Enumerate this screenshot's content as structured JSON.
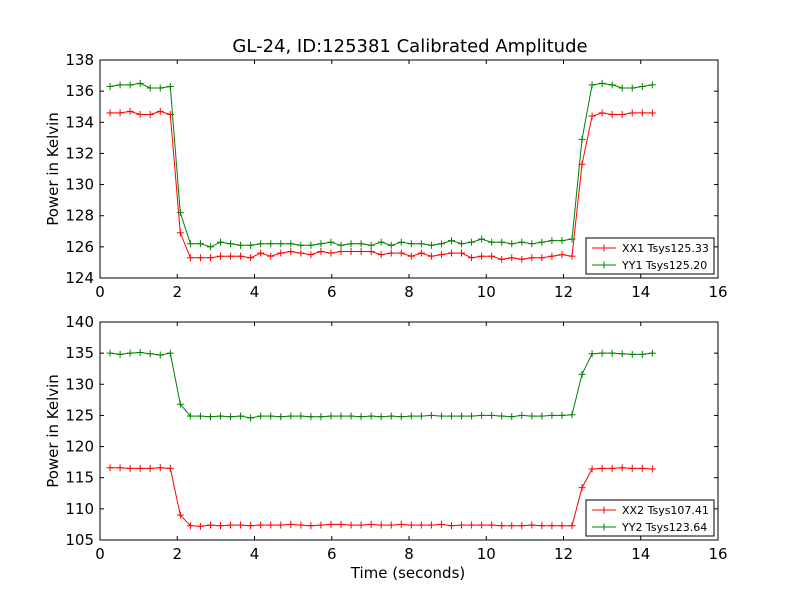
{
  "chart_data": [
    {
      "type": "line",
      "title": "GL-24, ID:125381 Calibrated Amplitude",
      "xlabel": "",
      "ylabel": "Power in Kelvin",
      "xlim": [
        0,
        16
      ],
      "ylim": [
        124,
        138
      ],
      "xticks": [
        "0",
        "2",
        "4",
        "6",
        "8",
        "10",
        "12",
        "14",
        "16"
      ],
      "yticks": [
        "124",
        "126",
        "128",
        "130",
        "132",
        "134",
        "136",
        "138"
      ],
      "grid": false,
      "legend": "lower right",
      "series": [
        {
          "name": "XX1 Tsys125.33",
          "color": "#ff0000",
          "x": [
            0.26,
            0.52,
            0.78,
            1.04,
            1.3,
            1.56,
            1.82,
            2.08,
            2.34,
            2.6,
            2.86,
            3.12,
            3.38,
            3.64,
            3.9,
            4.16,
            4.42,
            4.68,
            4.94,
            5.2,
            5.46,
            5.72,
            5.98,
            6.24,
            6.5,
            6.76,
            7.02,
            7.28,
            7.54,
            7.8,
            8.06,
            8.32,
            8.58,
            8.84,
            9.1,
            9.36,
            9.62,
            9.88,
            10.14,
            10.4,
            10.66,
            10.92,
            11.18,
            11.44,
            11.7,
            11.96,
            12.22,
            12.48,
            12.74,
            13.0,
            13.26,
            13.52,
            13.78,
            14.04,
            14.3
          ],
          "y": [
            134.6,
            134.6,
            134.7,
            134.5,
            134.5,
            134.7,
            134.5,
            126.9,
            125.3,
            125.3,
            125.3,
            125.4,
            125.4,
            125.4,
            125.3,
            125.6,
            125.4,
            125.6,
            125.7,
            125.6,
            125.5,
            125.7,
            125.6,
            125.7,
            125.7,
            125.7,
            125.7,
            125.5,
            125.6,
            125.6,
            125.4,
            125.6,
            125.4,
            125.5,
            125.6,
            125.6,
            125.3,
            125.4,
            125.4,
            125.2,
            125.3,
            125.2,
            125.3,
            125.3,
            125.4,
            125.5,
            125.4,
            131.3,
            134.4,
            134.6,
            134.5,
            134.5,
            134.6,
            134.6,
            134.6
          ]
        },
        {
          "name": "YY1 Tsys125.20",
          "color": "#008000",
          "x": [
            0.26,
            0.52,
            0.78,
            1.04,
            1.3,
            1.56,
            1.82,
            2.08,
            2.34,
            2.6,
            2.86,
            3.12,
            3.38,
            3.64,
            3.9,
            4.16,
            4.42,
            4.68,
            4.94,
            5.2,
            5.46,
            5.72,
            5.98,
            6.24,
            6.5,
            6.76,
            7.02,
            7.28,
            7.54,
            7.8,
            8.06,
            8.32,
            8.58,
            8.84,
            9.1,
            9.36,
            9.62,
            9.88,
            10.14,
            10.4,
            10.66,
            10.92,
            11.18,
            11.44,
            11.7,
            11.96,
            12.22,
            12.48,
            12.74,
            13.0,
            13.26,
            13.52,
            13.78,
            14.04,
            14.3
          ],
          "y": [
            136.3,
            136.4,
            136.4,
            136.5,
            136.2,
            136.2,
            136.3,
            128.2,
            126.2,
            126.2,
            126.0,
            126.3,
            126.2,
            126.1,
            126.1,
            126.2,
            126.2,
            126.2,
            126.2,
            126.1,
            126.1,
            126.2,
            126.3,
            126.1,
            126.2,
            126.2,
            126.1,
            126.3,
            126.1,
            126.3,
            126.2,
            126.2,
            126.1,
            126.2,
            126.4,
            126.2,
            126.3,
            126.5,
            126.3,
            126.3,
            126.2,
            126.3,
            126.2,
            126.3,
            126.4,
            126.4,
            126.5,
            132.9,
            136.4,
            136.5,
            136.4,
            136.2,
            136.2,
            136.3,
            136.4
          ]
        }
      ]
    },
    {
      "type": "line",
      "title": "",
      "xlabel": "Time (seconds)",
      "ylabel": "Power in Kelvin",
      "xlim": [
        0,
        16
      ],
      "ylim": [
        105,
        140
      ],
      "xticks": [
        "0",
        "2",
        "4",
        "6",
        "8",
        "10",
        "12",
        "14",
        "16"
      ],
      "yticks": [
        "105",
        "110",
        "115",
        "120",
        "125",
        "130",
        "135",
        "140"
      ],
      "grid": false,
      "legend": "lower right",
      "series": [
        {
          "name": "XX2 Tsys107.41",
          "color": "#ff0000",
          "x": [
            0.26,
            0.52,
            0.78,
            1.04,
            1.3,
            1.56,
            1.82,
            2.08,
            2.34,
            2.6,
            2.86,
            3.12,
            3.38,
            3.64,
            3.9,
            4.16,
            4.42,
            4.68,
            4.94,
            5.2,
            5.46,
            5.72,
            5.98,
            6.24,
            6.5,
            6.76,
            7.02,
            7.28,
            7.54,
            7.8,
            8.06,
            8.32,
            8.58,
            8.84,
            9.1,
            9.36,
            9.62,
            9.88,
            10.14,
            10.4,
            10.66,
            10.92,
            11.18,
            11.44,
            11.7,
            11.96,
            12.22,
            12.48,
            12.74,
            13.0,
            13.26,
            13.52,
            13.78,
            14.04,
            14.3
          ],
          "y": [
            116.6,
            116.6,
            116.5,
            116.5,
            116.5,
            116.6,
            116.5,
            109.0,
            107.3,
            107.2,
            107.4,
            107.3,
            107.4,
            107.4,
            107.3,
            107.4,
            107.4,
            107.4,
            107.5,
            107.4,
            107.3,
            107.4,
            107.5,
            107.5,
            107.4,
            107.4,
            107.5,
            107.4,
            107.4,
            107.5,
            107.4,
            107.4,
            107.4,
            107.5,
            107.3,
            107.4,
            107.4,
            107.4,
            107.4,
            107.3,
            107.3,
            107.3,
            107.4,
            107.3,
            107.3,
            107.3,
            107.3,
            113.4,
            116.4,
            116.5,
            116.5,
            116.6,
            116.5,
            116.5,
            116.4
          ]
        },
        {
          "name": "YY2 Tsys123.64",
          "color": "#008000",
          "x": [
            0.26,
            0.52,
            0.78,
            1.04,
            1.3,
            1.56,
            1.82,
            2.08,
            2.34,
            2.6,
            2.86,
            3.12,
            3.38,
            3.64,
            3.9,
            4.16,
            4.42,
            4.68,
            4.94,
            5.2,
            5.46,
            5.72,
            5.98,
            6.24,
            6.5,
            6.76,
            7.02,
            7.28,
            7.54,
            7.8,
            8.06,
            8.32,
            8.58,
            8.84,
            9.1,
            9.36,
            9.62,
            9.88,
            10.14,
            10.4,
            10.66,
            10.92,
            11.18,
            11.44,
            11.7,
            11.96,
            12.22,
            12.48,
            12.74,
            13.0,
            13.26,
            13.52,
            13.78,
            14.04,
            14.3
          ],
          "y": [
            135.0,
            134.8,
            135.0,
            135.1,
            134.9,
            134.7,
            135.0,
            126.8,
            124.9,
            124.9,
            124.8,
            124.9,
            124.8,
            124.9,
            124.6,
            124.9,
            124.9,
            124.8,
            124.9,
            124.9,
            124.8,
            124.8,
            124.9,
            124.9,
            124.9,
            124.8,
            124.9,
            124.8,
            124.9,
            124.8,
            124.9,
            124.9,
            125.0,
            124.9,
            124.9,
            124.9,
            124.9,
            125.0,
            125.0,
            124.9,
            124.8,
            125.0,
            124.9,
            124.9,
            125.0,
            125.0,
            125.1,
            131.6,
            134.9,
            135.0,
            135.0,
            134.9,
            134.8,
            134.8,
            135.0
          ]
        }
      ]
    }
  ]
}
